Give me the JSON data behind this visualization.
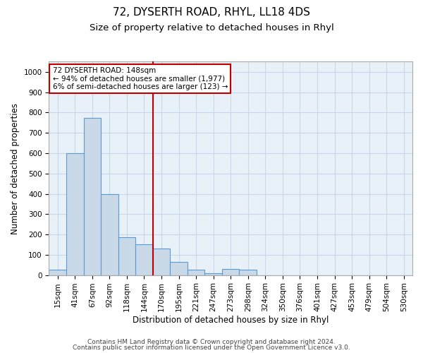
{
  "title": "72, DYSERTH ROAD, RHYL, LL18 4DS",
  "subtitle": "Size of property relative to detached houses in Rhyl",
  "xlabel": "Distribution of detached houses by size in Rhyl",
  "ylabel": "Number of detached properties",
  "categories": [
    "15sqm",
    "41sqm",
    "67sqm",
    "92sqm",
    "118sqm",
    "144sqm",
    "170sqm",
    "195sqm",
    "221sqm",
    "247sqm",
    "273sqm",
    "298sqm",
    "324sqm",
    "350sqm",
    "376sqm",
    "401sqm",
    "427sqm",
    "453sqm",
    "479sqm",
    "504sqm",
    "530sqm"
  ],
  "values": [
    25,
    600,
    775,
    400,
    185,
    150,
    130,
    65,
    25,
    10,
    30,
    25,
    0,
    0,
    0,
    0,
    0,
    0,
    0,
    0,
    0
  ],
  "bar_color": "#c9d9e8",
  "bar_edge_color": "#5b9bd5",
  "highlight_index": 5,
  "highlight_color": "#c00000",
  "annotation_line1": "72 DYSERTH ROAD: 148sqm",
  "annotation_line2": "← 94% of detached houses are smaller (1,977)",
  "annotation_line3": "6% of semi-detached houses are larger (123) →",
  "annotation_box_color": "#c00000",
  "ylim": [
    0,
    1050
  ],
  "yticks": [
    0,
    100,
    200,
    300,
    400,
    500,
    600,
    700,
    800,
    900,
    1000
  ],
  "grid_color": "#c8d8e8",
  "background_color": "#e8f0f8",
  "footer_line1": "Contains HM Land Registry data © Crown copyright and database right 2024.",
  "footer_line2": "Contains public sector information licensed under the Open Government Licence v3.0.",
  "title_fontsize": 11,
  "subtitle_fontsize": 9.5,
  "axis_label_fontsize": 8.5,
  "tick_fontsize": 7.5,
  "annotation_fontsize": 7.5,
  "footer_fontsize": 6.5
}
